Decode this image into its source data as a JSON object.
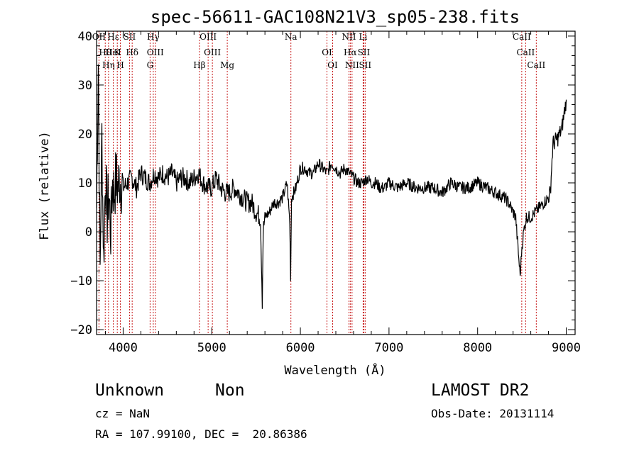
{
  "chart_data": {
    "type": "line",
    "title": "spec-56611-GAC108N21V3_sp05-238.fits",
    "xlabel": "Wavelength (Å)",
    "ylabel": "Flux (relative)",
    "xlim": [
      3700,
      9100
    ],
    "ylim": [
      -21,
      41
    ],
    "xticks": [
      4000,
      5000,
      6000,
      7000,
      8000,
      9000
    ],
    "yticks": [
      -20,
      -10,
      0,
      10,
      20,
      30,
      40
    ],
    "ytick_labels": [
      "−20",
      "−10",
      "0",
      "10",
      "20",
      "30",
      "40"
    ],
    "grid": false,
    "color": "#000000",
    "line_color": "#c81e1e",
    "series": [
      {
        "x": [
          3700,
          3720,
          3740,
          3760,
          3780,
          3800,
          3820,
          3840,
          3860,
          3880,
          3900,
          3920,
          3940,
          3960,
          3980,
          4000,
          4050,
          4100,
          4150,
          4200,
          4250,
          4300,
          4350,
          4400,
          4450,
          4500,
          4550,
          4600,
          4650,
          4700,
          4750,
          4800,
          4850,
          4900,
          4950,
          5000,
          5050,
          5100,
          5150,
          5200,
          5250,
          5300,
          5350,
          5400,
          5450,
          5500,
          5550,
          5570,
          5580,
          5600,
          5650,
          5700,
          5750,
          5800,
          5850,
          5880,
          5890,
          5900,
          5950,
          6000,
          6050,
          6100,
          6150,
          6200,
          6250,
          6300,
          6350,
          6400,
          6450,
          6500,
          6550,
          6600,
          6650,
          6700,
          6750,
          6800,
          6850,
          6900,
          6950,
          7000,
          7100,
          7200,
          7300,
          7400,
          7500,
          7600,
          7700,
          7800,
          7900,
          8000,
          8100,
          8200,
          8300,
          8350,
          8400,
          8430,
          8450,
          8480,
          8500,
          8520,
          8550,
          8600,
          8650,
          8700,
          8750,
          8800,
          8820,
          8850,
          8900,
          8950,
          9000
        ],
        "y": [
          5,
          35,
          -8,
          20,
          -6,
          12,
          3,
          8,
          0,
          10,
          8,
          11,
          9,
          11,
          10,
          9,
          10,
          11,
          9,
          12,
          11,
          10,
          12,
          11,
          12,
          11,
          12,
          10,
          11,
          11,
          10,
          11,
          12,
          10,
          9,
          9,
          11,
          9,
          8,
          8,
          9,
          8,
          7,
          6,
          6,
          4,
          3,
          -14,
          0,
          3,
          4,
          6,
          6,
          7,
          10,
          2,
          -9,
          7,
          9,
          13,
          13,
          12,
          12,
          14,
          13,
          12,
          14,
          13,
          12,
          13,
          12,
          11,
          10,
          10,
          11,
          10,
          10,
          9,
          9,
          10,
          9,
          10,
          9,
          9,
          9,
          8,
          10,
          9,
          9,
          10,
          9,
          8,
          7,
          6,
          4,
          3,
          -2,
          -9,
          -3,
          0,
          3,
          3,
          4,
          5,
          6,
          7,
          8,
          18,
          19,
          21,
          27
        ]
      }
    ],
    "lines": [
      {
        "x": 3727,
        "labels": [
          "OII"
        ]
      },
      {
        "x": 3798,
        "labels": [
          "Hθ"
        ]
      },
      {
        "x": 3835,
        "labels": [
          "Hη"
        ]
      },
      {
        "x": 3889,
        "labels": [
          "Hε",
          "HeI"
        ]
      },
      {
        "x": 3934,
        "labels": [
          "K"
        ]
      },
      {
        "x": 3969,
        "labels": [
          "H"
        ]
      },
      {
        "x": 4072,
        "labels": [
          "SII"
        ]
      },
      {
        "x": 4102,
        "labels": [
          "Hδ"
        ]
      },
      {
        "x": 4304,
        "labels": [
          "G"
        ]
      },
      {
        "x": 4340,
        "labels": [
          "Hγ"
        ]
      },
      {
        "x": 4363,
        "labels": [
          "OIII"
        ]
      },
      {
        "x": 4861,
        "labels": [
          "Hβ"
        ]
      },
      {
        "x": 4959,
        "labels": [
          "OIII"
        ]
      },
      {
        "x": 5007,
        "labels": [
          "OIII"
        ]
      },
      {
        "x": 5175,
        "labels": [
          "Mg"
        ]
      },
      {
        "x": 5893,
        "labels": [
          "Na"
        ]
      },
      {
        "x": 6300,
        "labels": [
          "OI"
        ]
      },
      {
        "x": 6364,
        "labels": [
          "OI"
        ]
      },
      {
        "x": 6548,
        "labels": [
          "NII"
        ]
      },
      {
        "x": 6563,
        "labels": [
          "Hα"
        ]
      },
      {
        "x": 6583,
        "labels": [
          "NII"
        ]
      },
      {
        "x": 6708,
        "labels": [
          "Li"
        ]
      },
      {
        "x": 6716,
        "labels": [
          "SII"
        ]
      },
      {
        "x": 6731,
        "labels": [
          "SII"
        ]
      },
      {
        "x": 8498,
        "labels": [
          "CaII"
        ]
      },
      {
        "x": 8542,
        "labels": [
          "CaII"
        ]
      },
      {
        "x": 8662,
        "labels": [
          "CaII"
        ]
      }
    ]
  },
  "info": {
    "class": "Unknown",
    "subclass": "Non",
    "survey": "LAMOST DR2",
    "cz": "cz = NaN",
    "obs_date": "Obs-Date: 20131114",
    "radec": "RA = 107.99100, DEC =  20.86386"
  }
}
